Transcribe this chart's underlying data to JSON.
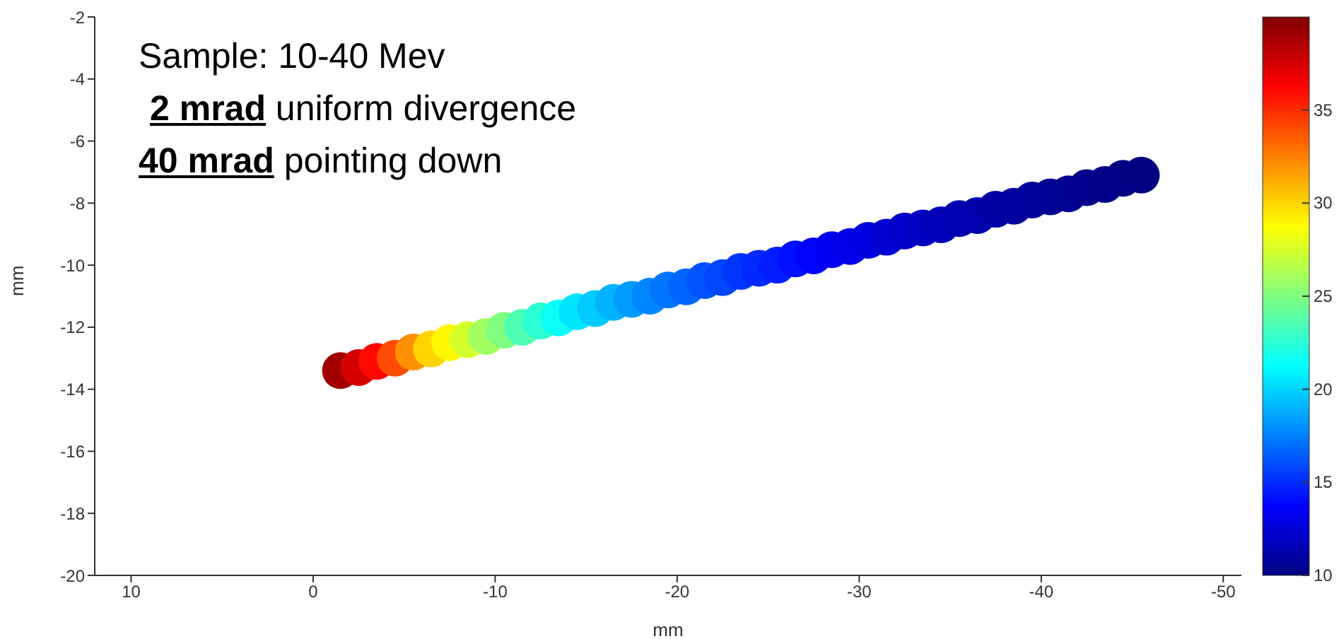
{
  "chart_data": {
    "type": "scatter",
    "xlabel": "mm",
    "ylabel": "mm",
    "xlim": [
      12,
      -51
    ],
    "xticks": [
      10,
      0,
      -10,
      -20,
      -30,
      -40,
      -50
    ],
    "ylim": [
      -20,
      -2
    ],
    "yticks": [
      -20,
      -18,
      -16,
      -14,
      -12,
      -10,
      -8,
      -6,
      -4,
      -2
    ],
    "clim": [
      10,
      40
    ],
    "cticks": [
      10,
      15,
      20,
      25,
      30,
      35
    ],
    "grid": false,
    "legend": false,
    "annotations": [
      "Sample: 10-40 Mev",
      "2 mrad uniform divergence",
      "40 mrad pointing down"
    ],
    "x": [
      -1.5,
      -2.5,
      -3.5,
      -4.5,
      -5.5,
      -6.5,
      -7.5,
      -8.5,
      -9.5,
      -10.5,
      -11.5,
      -12.5,
      -13.5,
      -14.5,
      -15.5,
      -16.5,
      -17.5,
      -18.5,
      -19.5,
      -20.5,
      -21.5,
      -22.5,
      -23.5,
      -24.5,
      -25.5,
      -26.5,
      -27.5,
      -28.5,
      -29.5,
      -30.5,
      -31.5,
      -32.5,
      -33.5,
      -34.5,
      -35.5,
      -36.5,
      -37.5,
      -38.5,
      -39.5,
      -40.5,
      -41.5,
      -42.5,
      -43.5,
      -44.5,
      -45.5
    ],
    "values": [
      -13.4,
      -13.3,
      -13.1,
      -13.0,
      -12.8,
      -12.7,
      -12.5,
      -12.4,
      -12.3,
      -12.1,
      -12.0,
      -11.8,
      -11.7,
      -11.5,
      -11.4,
      -11.2,
      -11.1,
      -11.0,
      -10.8,
      -10.7,
      -10.5,
      -10.4,
      -10.2,
      -10.1,
      -10.0,
      -9.8,
      -9.7,
      -9.5,
      -9.4,
      -9.2,
      -9.1,
      -8.9,
      -8.8,
      -8.7,
      -8.5,
      -8.4,
      -8.2,
      -8.1,
      -7.9,
      -7.8,
      -7.7,
      -7.5,
      -7.4,
      -7.2,
      -7.1
    ],
    "cvalues": [
      39,
      37.5,
      36,
      34,
      32,
      30,
      29,
      27.5,
      26,
      25,
      23.5,
      22.5,
      21.5,
      20.5,
      19.7,
      19,
      18.3,
      17.7,
      17.2,
      16.7,
      16.2,
      15.8,
      15.3,
      15,
      14.6,
      14.2,
      13.8,
      13.4,
      13.1,
      12.8,
      12.5,
      12.2,
      12,
      11.7,
      11.5,
      11.3,
      11.1,
      10.9,
      10.8,
      10.6,
      10.5,
      10.4,
      10.3,
      10.1,
      10
    ],
    "marker": "circle"
  }
}
